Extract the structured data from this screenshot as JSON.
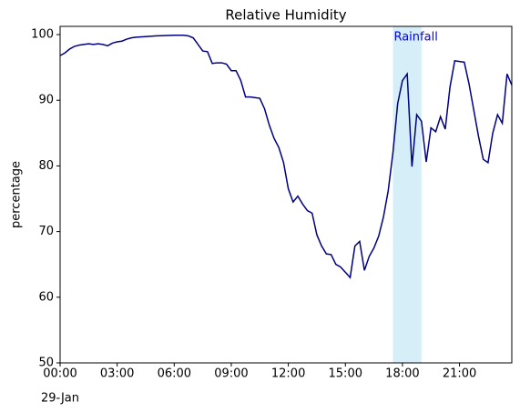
{
  "chart_data": {
    "type": "line",
    "title": "Relative Humidity",
    "y_label": "percentage",
    "x_sublabel": "29-Jan",
    "x": [
      0,
      0.25,
      0.5,
      0.75,
      1,
      1.25,
      1.5,
      1.75,
      2,
      2.25,
      2.5,
      2.75,
      3,
      3.25,
      3.5,
      3.75,
      4,
      4.5,
      5,
      5.5,
      6,
      6.5,
      6.75,
      7,
      7.25,
      7.5,
      7.75,
      8,
      8.25,
      8.5,
      8.75,
      9,
      9.25,
      9.5,
      9.75,
      10,
      10.25,
      10.5,
      10.75,
      11,
      11.25,
      11.5,
      11.75,
      12,
      12.25,
      12.5,
      12.75,
      13,
      13.25,
      13.5,
      13.75,
      14,
      14.25,
      14.5,
      14.75,
      15,
      15.25,
      15.5,
      15.75,
      16,
      16.25,
      16.5,
      16.75,
      17,
      17.25,
      17.5,
      17.75,
      18,
      18.25,
      18.5,
      18.75,
      19,
      19.25,
      19.5,
      19.75,
      20,
      20.25,
      20.5,
      20.75,
      21,
      21.25,
      21.5,
      21.75,
      22,
      22.25,
      22.5,
      22.75,
      23,
      23.25,
      23.5,
      23.75
    ],
    "series": [
      {
        "name": "Relative Humidity",
        "color": "#000080",
        "values": [
          96.8,
          97.2,
          97.8,
          98.2,
          98.4,
          98.5,
          98.6,
          98.5,
          98.6,
          98.5,
          98.3,
          98.7,
          98.9,
          99.0,
          99.3,
          99.5,
          99.6,
          99.7,
          99.8,
          99.85,
          99.9,
          99.9,
          99.8,
          99.5,
          98.5,
          97.5,
          97.4,
          95.6,
          95.7,
          95.7,
          95.5,
          94.5,
          94.5,
          93,
          90.5,
          90.5,
          90.4,
          90.3,
          88.7,
          86.2,
          84.2,
          82.8,
          80.5,
          76.5,
          74.5,
          75.4,
          74.2,
          73.2,
          72.8,
          69.5,
          67.8,
          66.6,
          66.5,
          65,
          64.6,
          63.8,
          63,
          67.8,
          68.5,
          64.1,
          66.2,
          67.5,
          69.3,
          72.2,
          76.2,
          82,
          89.5,
          93,
          94,
          79.9,
          87.8,
          86.8,
          80.6,
          85.8,
          85.2,
          87.5,
          85.6,
          92,
          96,
          95.9,
          95.8,
          92.5,
          88.5,
          84.5,
          81,
          80.5,
          85,
          87.8,
          86.5,
          94,
          92.3
        ]
      }
    ],
    "span": {
      "label": "Rainfall",
      "start": 17.5,
      "end": 19,
      "color": "#87ceeb",
      "text_color": "#0000ff"
    },
    "xlim": [
      0,
      23.75
    ],
    "xticks": [
      {
        "value": 0,
        "label": "00:00"
      },
      {
        "value": 3,
        "label": "03:00"
      },
      {
        "value": 6,
        "label": "06:00"
      },
      {
        "value": 9,
        "label": "09:00"
      },
      {
        "value": 12,
        "label": "12:00"
      },
      {
        "value": 15,
        "label": "15:00"
      },
      {
        "value": 18,
        "label": "18:00"
      },
      {
        "value": 21,
        "label": "21:00"
      }
    ],
    "ylim": [
      50,
      101.25
    ],
    "yticks": [
      50,
      60,
      70,
      80,
      90,
      100
    ],
    "grid": false
  }
}
